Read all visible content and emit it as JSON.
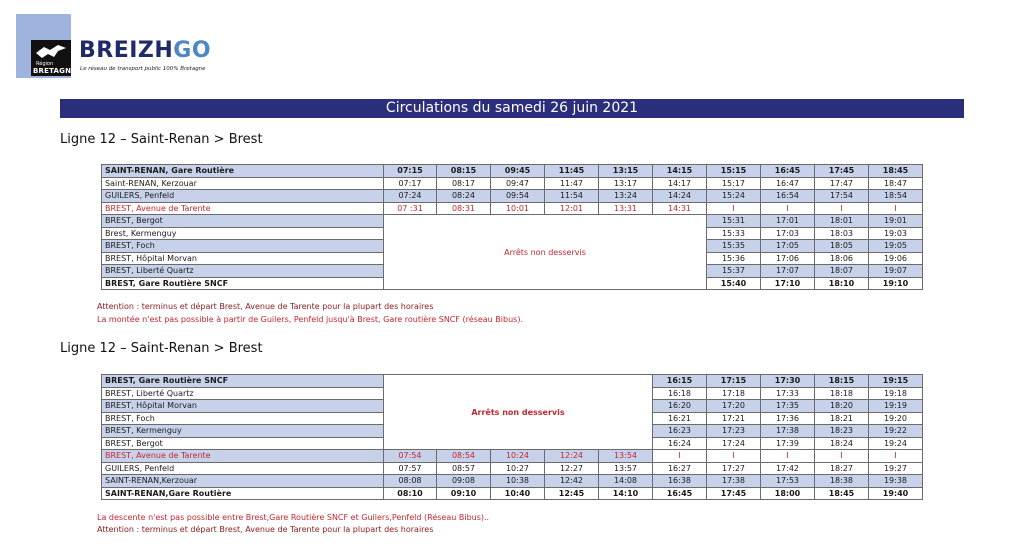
{
  "header": {
    "region_small": "Région",
    "region_big": "BRETAGNE",
    "brand_main": "BREIZH",
    "brand_go": "GO",
    "tagline": "Le réseau de transport public 100% Bretagne",
    "title": "Circulations du samedi 26 juin 2021"
  },
  "colors": {
    "title_bar": "#2b2e7d",
    "row_highlight": "#c7d2ea",
    "alert_red": "#c0282f",
    "logo_light": "#9eb3dd"
  },
  "table1": {
    "line_title": "Ligne 12 – Saint-Renan > Brest",
    "non_served": "Arrêts non desservis",
    "rows": [
      {
        "stop": "SAINT-RENAN, Gare Routière",
        "times": [
          "07:15",
          "08:15",
          "09:45",
          "11:45",
          "13:15",
          "14:15",
          "15:15",
          "16:45",
          "17:45",
          "18:45"
        ]
      },
      {
        "stop": "Saint-RENAN, Kerzouar",
        "times": [
          "07:17",
          "08:17",
          "09:47",
          "11:47",
          "13:17",
          "14:17",
          "15:17",
          "16:47",
          "17:47",
          "18:47"
        ]
      },
      {
        "stop": "GUILERS, Penfeld",
        "times": [
          "07:24",
          "08:24",
          "09:54",
          "11:54",
          "13:24",
          "14:24",
          "15:24",
          "16:54",
          "17:54",
          "18:54"
        ]
      },
      {
        "stop": "BREST, Avenue de Tarente",
        "times": [
          "07 :31",
          "08:31",
          "10:01",
          "12:01",
          "13:31",
          "14:31",
          "I",
          "I",
          "I",
          "I"
        ]
      },
      {
        "stop": "BREST, Bergot",
        "times": [
          "15:31",
          "17:01",
          "18:01",
          "19:01"
        ]
      },
      {
        "stop": "Brest, Kermenguy",
        "times": [
          "15:33",
          "17:03",
          "18:03",
          "19:03"
        ]
      },
      {
        "stop": "BREST, Foch",
        "times": [
          "15:35",
          "17:05",
          "18:05",
          "19:05"
        ]
      },
      {
        "stop": "BREST, Hôpital Morvan",
        "times": [
          "15:36",
          "17:06",
          "18:06",
          "19:06"
        ]
      },
      {
        "stop": "BREST, Liberté Quartz",
        "times": [
          "15:37",
          "17:07",
          "18:07",
          "19:07"
        ]
      },
      {
        "stop": "BREST, Gare Routière SNCF",
        "times": [
          "15:40",
          "17:10",
          "18:10",
          "19:10"
        ]
      }
    ],
    "notes": [
      "Attention : terminus et départ Brest, Avenue de Tarente pour la plupart des horaires",
      "La montée n'est pas possible à partir de Guilers, Penfeld jusqu'à Brest, Gare routière SNCF (réseau Bibus)."
    ]
  },
  "table2": {
    "line_title": "Ligne 12 – Saint-Renan > Brest",
    "non_served": "Arrêts non desservis",
    "rows": [
      {
        "stop": "BREST, Gare Routière SNCF",
        "times": [
          "16:15",
          "17:15",
          "17:30",
          "18:15",
          "19:15"
        ]
      },
      {
        "stop": "BREST, Liberté Quartz",
        "times": [
          "16:18",
          "17:18",
          "17:33",
          "18:18",
          "19:18"
        ]
      },
      {
        "stop": "BREST, Hôpital Morvan",
        "times": [
          "16:20",
          "17:20",
          "17:35",
          "18:20",
          "19:19"
        ]
      },
      {
        "stop": "BREST, Foch",
        "times": [
          "16:21",
          "17:21",
          "17:36",
          "18:21",
          "19:20"
        ]
      },
      {
        "stop": "BREST, Kermenguy",
        "times": [
          "16:23",
          "17:23",
          "17:38",
          "18:23",
          "19:22"
        ]
      },
      {
        "stop": "BREST, Bergot",
        "times": [
          "16:24",
          "17:24",
          "17:39",
          "18:24",
          "19:24"
        ]
      },
      {
        "stop": "BREST, Avenue de Tarente",
        "times": [
          "07:54",
          "08:54",
          "10:24",
          "12:24",
          "13:54",
          "I",
          "I",
          "I",
          "I",
          "I"
        ]
      },
      {
        "stop": "GUILERS, Penfeld",
        "times": [
          "07:57",
          "08:57",
          "10:27",
          "12:27",
          "13:57",
          "16:27",
          "17:27",
          "17:42",
          "18:27",
          "19:27"
        ]
      },
      {
        "stop": "SAINT-RENAN,Kerzouar",
        "times": [
          "08:08",
          "09:08",
          "10:38",
          "12:42",
          "14:08",
          "16:38",
          "17:38",
          "17:53",
          "18:38",
          "19:38"
        ]
      },
      {
        "stop": "SAINT-RENAN,Gare Routière",
        "times": [
          "08:10",
          "09:10",
          "10:40",
          "12:45",
          "14:10",
          "16:45",
          "17:45",
          "18:00",
          "18:45",
          "19:40"
        ]
      }
    ],
    "notes": [
      "La descente n'est pas possible entre Brest,Gare Routière SNCF et Guilers,Penfeld (Réseau Bibus)..",
      "Attention : terminus et départ Brest, Avenue de Tarente pour la plupart des horaires"
    ]
  }
}
